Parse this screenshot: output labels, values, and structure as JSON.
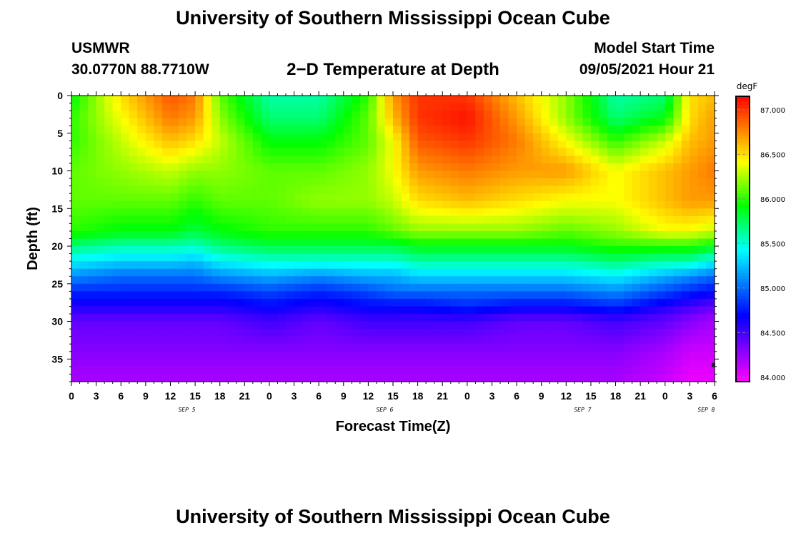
{
  "header": {
    "title": "University of Southern Mississippi Ocean Cube",
    "station": "USMWR",
    "coords": "30.0770N  88.7710W",
    "subtitle": "2−D Temperature at Depth",
    "model_start_label": "Model Start Time",
    "model_start_value": "09/05/2021 Hour 21"
  },
  "footer": {
    "title": "University of Southern Mississippi Ocean Cube"
  },
  "chart_data": {
    "type": "heatmap",
    "xlabel": "Forecast Time(Z)",
    "ylabel": "Depth (ft)",
    "x_tick_labels": [
      "0",
      "3",
      "6",
      "9",
      "12",
      "15",
      "18",
      "21",
      "0",
      "3",
      "6",
      "9",
      "12",
      "15",
      "18",
      "21",
      "0",
      "3",
      "6",
      "9",
      "12",
      "15",
      "18",
      "21",
      "0",
      "3",
      "6"
    ],
    "day_labels": [
      {
        "label": "SEP 5",
        "hour_index": 14
      },
      {
        "label": "SEP 6",
        "hour_index": 38
      },
      {
        "label": "SEP 7",
        "hour_index": 62
      },
      {
        "label": "SEP 8",
        "hour_index": 77
      }
    ],
    "y_tick_labels": [
      "0",
      "5",
      "10",
      "15",
      "20",
      "25",
      "30",
      "35"
    ],
    "y_tick_values": [
      0,
      5,
      10,
      15,
      20,
      25,
      30,
      35
    ],
    "depth_range": [
      0,
      38
    ],
    "hour_range": [
      0,
      78
    ],
    "colorbar": {
      "unit": "degF",
      "range": [
        83.95,
        87.15
      ],
      "tick_values": [
        84.0,
        84.5,
        85.0,
        85.5,
        86.0,
        86.5,
        87.0
      ],
      "tick_labels": [
        "84.000",
        "84.500",
        "85.000",
        "85.500",
        "86.000",
        "86.500",
        "87.000"
      ],
      "colors": [
        "#ff00ff",
        "#aa00ff",
        "#5500ff",
        "#0000ff",
        "#0055ff",
        "#00aaff",
        "#00ffff",
        "#00ff80",
        "#00ff00",
        "#80ff00",
        "#ffff00",
        "#ffaa00",
        "#ff5500",
        "#ff0000"
      ]
    },
    "profile_hours": [
      0,
      6,
      12,
      15,
      18,
      24,
      30,
      36,
      39,
      42,
      48,
      54,
      60,
      66,
      72,
      75,
      78
    ],
    "profile_depths": [
      0,
      3,
      6,
      10,
      14,
      18,
      20,
      22,
      24,
      26,
      28,
      30,
      34,
      38
    ],
    "values": [
      [
        85.9,
        86.0,
        86.0,
        86.1,
        86.1,
        86.0,
        85.7,
        85.4,
        85.1,
        84.8,
        84.6,
        84.4,
        84.3,
        84.2
      ],
      [
        86.5,
        86.4,
        86.3,
        86.2,
        86.1,
        85.9,
        85.6,
        85.3,
        85.0,
        84.8,
        84.6,
        84.4,
        84.3,
        84.2
      ],
      [
        86.9,
        86.8,
        86.6,
        86.3,
        86.1,
        85.9,
        85.6,
        85.3,
        85.0,
        84.8,
        84.6,
        84.4,
        84.3,
        84.2
      ],
      [
        86.8,
        86.7,
        86.5,
        86.2,
        86.0,
        85.8,
        85.55,
        85.25,
        85.0,
        84.8,
        84.6,
        84.4,
        84.3,
        84.2
      ],
      [
        86.1,
        86.2,
        86.3,
        86.2,
        86.1,
        85.9,
        85.7,
        85.4,
        85.1,
        84.8,
        84.6,
        84.4,
        84.3,
        84.2
      ],
      [
        85.6,
        85.7,
        85.9,
        86.1,
        86.1,
        86.0,
        85.8,
        85.5,
        85.2,
        84.9,
        84.7,
        84.5,
        84.3,
        84.2
      ],
      [
        85.6,
        85.7,
        85.9,
        86.1,
        86.2,
        86.0,
        85.8,
        85.5,
        85.1,
        84.8,
        84.6,
        84.4,
        84.3,
        84.2
      ],
      [
        86.0,
        86.1,
        86.1,
        86.2,
        86.2,
        86.0,
        85.8,
        85.5,
        85.2,
        84.9,
        84.7,
        84.5,
        84.3,
        84.2
      ],
      [
        86.7,
        86.6,
        86.4,
        86.4,
        86.3,
        86.1,
        85.8,
        85.5,
        85.2,
        85.0,
        84.7,
        84.5,
        84.3,
        84.2
      ],
      [
        87.0,
        87.0,
        86.9,
        86.7,
        86.5,
        86.2,
        85.9,
        85.6,
        85.3,
        85.0,
        84.7,
        84.5,
        84.3,
        84.2
      ],
      [
        87.0,
        87.1,
        87.0,
        86.8,
        86.6,
        86.2,
        85.9,
        85.6,
        85.3,
        85.0,
        84.8,
        84.5,
        84.3,
        84.2
      ],
      [
        86.6,
        86.7,
        86.8,
        86.7,
        86.5,
        86.2,
        85.9,
        85.6,
        85.3,
        85.0,
        84.7,
        84.4,
        84.3,
        84.2
      ],
      [
        86.2,
        86.2,
        86.4,
        86.7,
        86.4,
        86.1,
        85.9,
        85.6,
        85.3,
        85.0,
        84.7,
        84.4,
        84.3,
        84.2
      ],
      [
        85.6,
        85.7,
        86.0,
        86.4,
        86.4,
        86.2,
        86.0,
        85.7,
        85.4,
        85.1,
        84.8,
        84.5,
        84.3,
        84.2
      ],
      [
        85.7,
        85.9,
        86.3,
        86.6,
        86.6,
        86.4,
        86.0,
        85.6,
        85.2,
        84.9,
        84.6,
        84.4,
        84.2,
        84.1
      ],
      [
        86.5,
        86.5,
        86.6,
        86.7,
        86.7,
        86.4,
        86.0,
        85.6,
        85.1,
        84.8,
        84.5,
        84.3,
        84.1,
        84.0
      ],
      [
        86.6,
        86.7,
        86.7,
        86.8,
        86.7,
        86.3,
        85.9,
        85.4,
        85.0,
        84.7,
        84.4,
        84.2,
        84.1,
        84.0
      ]
    ]
  }
}
